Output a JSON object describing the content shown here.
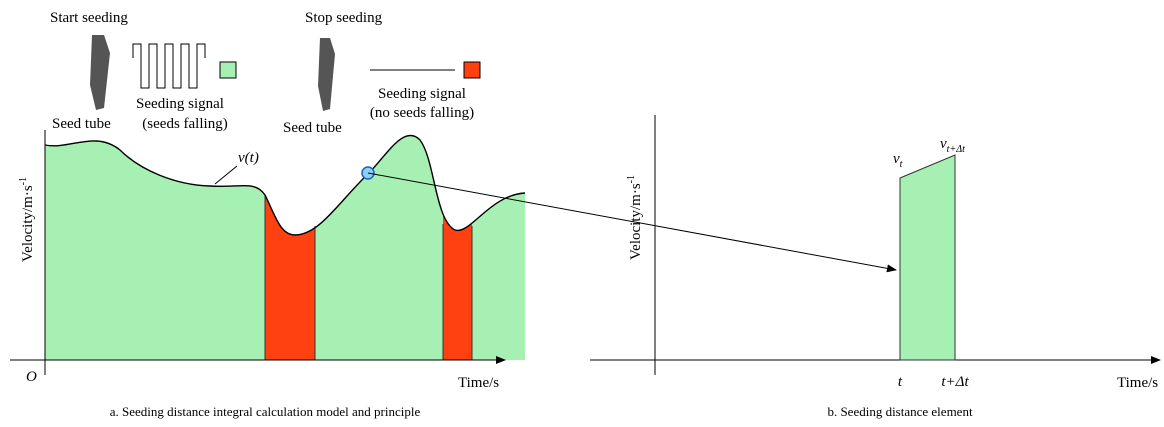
{
  "panel_a": {
    "start_label": "Start seeding",
    "stop_label": "Stop seeding",
    "seed_tube_1": "Seed tube",
    "seed_tube_2": "Seed tube",
    "signal_falling": [
      "Seeding signal",
      "(seeds falling)"
    ],
    "signal_not_falling": [
      "Seeding signal",
      "(no seeds falling)"
    ],
    "curve_label": "v(t)",
    "y_label": {
      "text": "Velocity/m·s",
      "sup": "-1"
    },
    "origin": "O",
    "x_label": "Time/s",
    "caption": "a. Seeding distance integral calculation model and principle"
  },
  "panel_b": {
    "v_t": {
      "base": "v",
      "sub": "t"
    },
    "v_t_dt": {
      "base": "v",
      "sub": "t+Δt"
    },
    "t_label": "t",
    "t_dt_label": "t+Δt",
    "y_label": {
      "text": "Velocity/m·s",
      "sup": "-1"
    },
    "x_label": "Time/s",
    "caption": "b. Seeding distance element"
  }
}
